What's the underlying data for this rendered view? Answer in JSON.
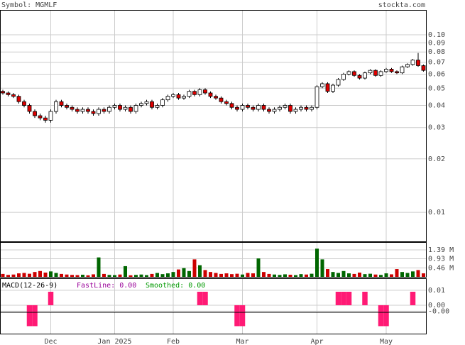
{
  "header": {
    "symbol": "Symbol: MGMLF",
    "site": "stockta.com"
  },
  "chart_data": [
    {
      "type": "candlestick",
      "log_scale": true,
      "grid": true,
      "up_color": "#ffffff",
      "down_color": "#dd0000",
      "categories": [
        null,
        null,
        null,
        null,
        null,
        null,
        null,
        null,
        null,
        "Dec",
        null,
        null,
        null,
        null,
        null,
        null,
        null,
        null,
        null,
        null,
        null,
        "Jan 2025",
        null,
        null,
        null,
        null,
        null,
        null,
        null,
        null,
        null,
        null,
        "Feb",
        null,
        null,
        null,
        null,
        null,
        null,
        null,
        null,
        null,
        null,
        null,
        null,
        "Mar",
        null,
        null,
        null,
        null,
        null,
        null,
        null,
        null,
        null,
        null,
        null,
        null,
        null,
        "Apr",
        null,
        null,
        null,
        null,
        null,
        null,
        null,
        null,
        null,
        null,
        null,
        null,
        "May",
        null,
        null,
        null,
        null,
        null,
        null,
        null
      ],
      "open": [
        0.048,
        0.047,
        0.046,
        0.045,
        0.042,
        0.04,
        0.037,
        0.035,
        0.034,
        0.033,
        0.037,
        0.042,
        0.04,
        0.039,
        0.038,
        0.037,
        0.038,
        0.037,
        0.036,
        0.038,
        0.037,
        0.039,
        0.04,
        0.038,
        0.039,
        0.037,
        0.04,
        0.041,
        0.042,
        0.039,
        0.04,
        0.043,
        0.045,
        0.046,
        0.044,
        0.045,
        0.048,
        0.046,
        0.049,
        0.047,
        0.045,
        0.044,
        0.042,
        0.041,
        0.039,
        0.038,
        0.04,
        0.039,
        0.038,
        0.04,
        0.038,
        0.037,
        0.038,
        0.039,
        0.04,
        0.037,
        0.038,
        0.039,
        0.038,
        0.039,
        0.051,
        0.053,
        0.048,
        0.052,
        0.056,
        0.06,
        0.062,
        0.059,
        0.057,
        0.061,
        0.063,
        0.059,
        0.062,
        0.064,
        0.062,
        0.061,
        0.066,
        0.068,
        0.072,
        0.067
      ],
      "high": [
        0.049,
        0.048,
        0.047,
        0.046,
        0.043,
        0.041,
        0.038,
        0.036,
        0.035,
        0.038,
        0.043,
        0.043,
        0.041,
        0.04,
        0.039,
        0.039,
        0.039,
        0.038,
        0.039,
        0.039,
        0.04,
        0.041,
        0.041,
        0.04,
        0.04,
        0.041,
        0.042,
        0.043,
        0.043,
        0.041,
        0.044,
        0.046,
        0.047,
        0.047,
        0.046,
        0.049,
        0.049,
        0.05,
        0.05,
        0.048,
        0.046,
        0.045,
        0.043,
        0.042,
        0.04,
        0.041,
        0.041,
        0.04,
        0.041,
        0.041,
        0.039,
        0.039,
        0.04,
        0.041,
        0.041,
        0.039,
        0.04,
        0.04,
        0.04,
        0.052,
        0.054,
        0.054,
        0.053,
        0.057,
        0.061,
        0.063,
        0.063,
        0.06,
        0.062,
        0.064,
        0.064,
        0.063,
        0.065,
        0.065,
        0.063,
        0.067,
        0.069,
        0.073,
        0.079,
        0.068
      ],
      "low": [
        0.046,
        0.045,
        0.044,
        0.041,
        0.039,
        0.036,
        0.034,
        0.033,
        0.032,
        0.032,
        0.036,
        0.039,
        0.038,
        0.037,
        0.036,
        0.036,
        0.036,
        0.035,
        0.035,
        0.036,
        0.036,
        0.038,
        0.037,
        0.037,
        0.036,
        0.036,
        0.039,
        0.04,
        0.038,
        0.038,
        0.039,
        0.042,
        0.044,
        0.043,
        0.043,
        0.044,
        0.045,
        0.045,
        0.046,
        0.044,
        0.043,
        0.041,
        0.04,
        0.038,
        0.037,
        0.037,
        0.038,
        0.037,
        0.037,
        0.037,
        0.036,
        0.036,
        0.037,
        0.038,
        0.036,
        0.036,
        0.037,
        0.037,
        0.037,
        0.038,
        0.05,
        0.047,
        0.047,
        0.051,
        0.055,
        0.059,
        0.058,
        0.056,
        0.056,
        0.06,
        0.058,
        0.058,
        0.061,
        0.061,
        0.06,
        0.06,
        0.065,
        0.067,
        0.066,
        0.062
      ],
      "close": [
        0.047,
        0.046,
        0.045,
        0.042,
        0.04,
        0.037,
        0.035,
        0.034,
        0.033,
        0.037,
        0.042,
        0.04,
        0.039,
        0.038,
        0.037,
        0.038,
        0.037,
        0.036,
        0.038,
        0.037,
        0.039,
        0.04,
        0.038,
        0.039,
        0.037,
        0.04,
        0.041,
        0.042,
        0.039,
        0.04,
        0.043,
        0.045,
        0.046,
        0.044,
        0.045,
        0.048,
        0.046,
        0.049,
        0.047,
        0.045,
        0.044,
        0.042,
        0.041,
        0.039,
        0.038,
        0.04,
        0.039,
        0.038,
        0.04,
        0.038,
        0.037,
        0.038,
        0.039,
        0.04,
        0.037,
        0.038,
        0.039,
        0.038,
        0.039,
        0.051,
        0.053,
        0.048,
        0.052,
        0.056,
        0.06,
        0.062,
        0.059,
        0.057,
        0.061,
        0.063,
        0.059,
        0.062,
        0.064,
        0.062,
        0.061,
        0.066,
        0.068,
        0.072,
        0.067,
        0.063
      ],
      "ylim": [
        0.00686,
        0.138
      ],
      "yticks": [
        0.01,
        0.02,
        0.03,
        0.04,
        0.05,
        0.06,
        0.07,
        0.08,
        0.09,
        {
          "value": 0.1,
          "label": "0.10"
        }
      ]
    },
    {
      "type": "bar",
      "up_color": "#006600",
      "down_color": "#cc0000",
      "values": [
        150000,
        100000,
        120000,
        180000,
        200000,
        160000,
        250000,
        300000,
        220000,
        280000,
        200000,
        150000,
        120000,
        100000,
        90000,
        110000,
        80000,
        130000,
        1000000,
        150000,
        100000,
        90000,
        120000,
        550000,
        80000,
        100000,
        120000,
        90000,
        150000,
        200000,
        140000,
        180000,
        250000,
        380000,
        450000,
        300000,
        900000,
        600000,
        350000,
        250000,
        200000,
        150000,
        180000,
        140000,
        160000,
        120000,
        200000,
        180000,
        950000,
        250000,
        150000,
        120000,
        100000,
        130000,
        110000,
        90000,
        140000,
        120000,
        160000,
        1450000,
        900000,
        400000,
        250000,
        200000,
        300000,
        180000,
        150000,
        220000,
        140000,
        160000,
        120000,
        100000,
        180000,
        130000,
        400000,
        250000,
        200000,
        280000,
        350000,
        180000
      ],
      "ylim": [
        0,
        1790000
      ],
      "yticks": [
        {
          "value": 460000,
          "label": "0.46 M"
        },
        {
          "value": 930000,
          "label": "0.93 M"
        },
        {
          "value": 1390000,
          "label": "1.39 M"
        }
      ]
    },
    {
      "type": "histogram_bar",
      "title": "MACD(12-26-9)",
      "fast_label": "FastLine: 0.00",
      "fast_color": "#990099",
      "smoothed_label": "Smoothed: 0.00",
      "smoothed_color": "#009900",
      "color": "#ff1a75",
      "values": [
        0,
        0,
        0,
        0,
        0,
        -0.014,
        -0.014,
        0,
        0,
        0.009,
        0,
        0,
        0,
        0,
        0,
        0,
        0,
        0,
        0,
        0,
        0,
        0,
        0,
        0,
        0,
        0,
        0,
        0,
        0,
        0,
        0,
        0,
        0,
        0,
        0,
        0,
        0,
        0.009,
        0.009,
        0,
        0,
        0,
        0,
        0,
        -0.014,
        -0.014,
        0,
        0,
        0,
        0,
        0,
        0,
        0,
        0,
        0,
        0,
        0,
        0,
        0,
        0,
        0,
        0,
        0,
        0.009,
        0.009,
        0.009,
        0,
        0,
        0.009,
        0,
        0,
        -0.014,
        -0.014,
        0,
        0,
        0,
        0,
        0.009,
        0,
        0
      ],
      "ylim": [
        -0.019,
        0.018
      ],
      "yticks": [
        {
          "value": -0.004,
          "label": "-0.00"
        },
        {
          "value": 0,
          "label": "0.00"
        },
        0.01
      ]
    }
  ]
}
